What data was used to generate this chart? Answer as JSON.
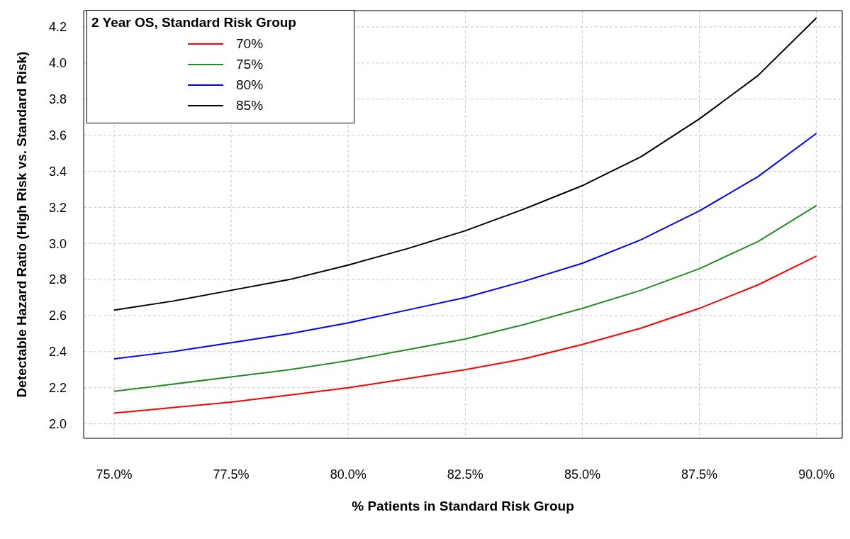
{
  "chart_data": {
    "type": "line",
    "xlabel": "% Patients in Standard Risk Group",
    "ylabel": "Detectable Hazard Ratio (High Risk vs. Standard Risk)",
    "legend_title": "2 Year OS, Standard Risk Group",
    "x": [
      75,
      76.25,
      77.5,
      78.75,
      80,
      81.25,
      82.5,
      83.75,
      85,
      86.25,
      87.5,
      88.75,
      90
    ],
    "series": [
      {
        "name": "70%",
        "color": "#ff0000",
        "values": [
          2.06,
          2.09,
          2.12,
          2.16,
          2.2,
          2.25,
          2.3,
          2.36,
          2.44,
          2.53,
          2.64,
          2.77,
          2.93
        ]
      },
      {
        "name": "75%",
        "color": "#228b22",
        "values": [
          2.18,
          2.22,
          2.26,
          2.3,
          2.35,
          2.41,
          2.47,
          2.55,
          2.64,
          2.74,
          2.86,
          3.01,
          3.21
        ]
      },
      {
        "name": "80%",
        "color": "#0000ff",
        "values": [
          2.36,
          2.4,
          2.45,
          2.5,
          2.56,
          2.63,
          2.7,
          2.79,
          2.89,
          3.02,
          3.18,
          3.37,
          3.61
        ]
      },
      {
        "name": "85%",
        "color": "#000000",
        "values": [
          2.63,
          2.68,
          2.74,
          2.8,
          2.88,
          2.97,
          3.07,
          3.19,
          3.32,
          3.48,
          3.69,
          3.93,
          4.25
        ]
      }
    ],
    "xlim": [
      74.35,
      90.55
    ],
    "ylim": [
      1.92,
      4.29
    ],
    "xticks": [
      {
        "value": 75,
        "label": "75.0%"
      },
      {
        "value": 77.5,
        "label": "77.5%"
      },
      {
        "value": 80,
        "label": "80.0%"
      },
      {
        "value": 82.5,
        "label": "82.5%"
      },
      {
        "value": 85,
        "label": "85.0%"
      },
      {
        "value": 87.5,
        "label": "87.5%"
      },
      {
        "value": 90,
        "label": "90.0%"
      }
    ],
    "yticks": [
      {
        "value": 2,
        "label": "2.0"
      },
      {
        "value": 2.2,
        "label": "2.2"
      },
      {
        "value": 2.4,
        "label": "2.4"
      },
      {
        "value": 2.6,
        "label": "2.6"
      },
      {
        "value": 2.8,
        "label": "2.8"
      },
      {
        "value": 3,
        "label": "3.0"
      },
      {
        "value": 3.2,
        "label": "3.2"
      },
      {
        "value": 3.4,
        "label": "3.4"
      },
      {
        "value": 3.6,
        "label": "3.6"
      },
      {
        "value": 3.8,
        "label": "3.8"
      },
      {
        "value": 4,
        "label": "4.0"
      },
      {
        "value": 4.2,
        "label": "4.2"
      }
    ],
    "grid": true,
    "legend": "top left",
    "marker": "none",
    "line_style": "solid"
  }
}
